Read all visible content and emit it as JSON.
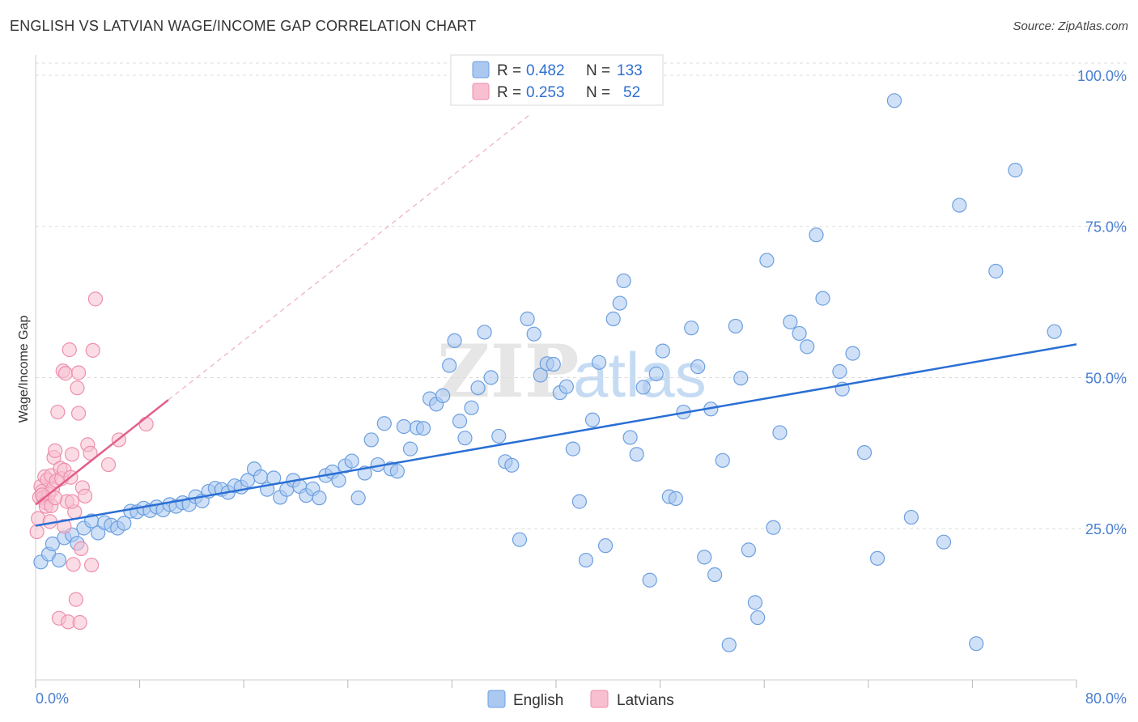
{
  "title": "ENGLISH VS LATVIAN WAGE/INCOME GAP CORRELATION CHART",
  "source": "Source: ZipAtlas.com",
  "watermark": {
    "part1": "ZIP",
    "part2": "atlas"
  },
  "colors": {
    "english_fill": "#aac8f0",
    "english_stroke": "#6c9fe0",
    "english_line": "#2a6fd4",
    "latvian_fill": "#f7bfd0",
    "latvian_stroke": "#ee8fae",
    "latvian_line": "#e0608a",
    "axis_label": "#4a7fd0",
    "grid": "#dddddd"
  },
  "chart_data": {
    "type": "scatter",
    "title": "ENGLISH VS LATVIAN WAGE/INCOME GAP CORRELATION CHART",
    "xlabel": "",
    "ylabel": "Wage/Income Gap",
    "xlim": [
      0,
      80
    ],
    "ylim": [
      0,
      102
    ],
    "x_tick_labels": {
      "left": "0.0%",
      "right": "80.0%"
    },
    "y_ticks": [
      25,
      50,
      75,
      100
    ],
    "y_tick_labels": [
      "25.0%",
      "50.0%",
      "75.0%",
      "100.0%"
    ],
    "legend_box": [
      {
        "r_label": "R =",
        "r_value": "0.482",
        "n_label": "N =",
        "n_value": "133"
      },
      {
        "r_label": "R =",
        "r_value": "0.253",
        "n_label": "N =",
        "n_value": "52"
      }
    ],
    "series": [
      {
        "name": "English",
        "r": 0.482,
        "n": 133,
        "trend": {
          "x": [
            0,
            80
          ],
          "y": [
            25.5,
            55.5
          ]
        },
        "points": [
          [
            0.4,
            19.5
          ],
          [
            1.0,
            20.8
          ],
          [
            1.3,
            22.5
          ],
          [
            1.8,
            19.8
          ],
          [
            2.2,
            23.5
          ],
          [
            2.8,
            24.0
          ],
          [
            3.2,
            22.6
          ],
          [
            3.7,
            25.1
          ],
          [
            4.3,
            26.3
          ],
          [
            4.8,
            24.3
          ],
          [
            5.3,
            26.0
          ],
          [
            5.8,
            25.6
          ],
          [
            6.3,
            25.1
          ],
          [
            6.8,
            25.9
          ],
          [
            7.3,
            27.9
          ],
          [
            7.8,
            27.8
          ],
          [
            8.3,
            28.4
          ],
          [
            8.8,
            28.0
          ],
          [
            9.3,
            28.6
          ],
          [
            9.8,
            28.1
          ],
          [
            10.3,
            29.0
          ],
          [
            10.8,
            28.7
          ],
          [
            11.3,
            29.3
          ],
          [
            11.8,
            29.0
          ],
          [
            12.3,
            30.3
          ],
          [
            12.8,
            29.6
          ],
          [
            13.3,
            31.2
          ],
          [
            13.8,
            31.7
          ],
          [
            14.3,
            31.5
          ],
          [
            14.8,
            31.0
          ],
          [
            15.3,
            32.1
          ],
          [
            15.8,
            31.9
          ],
          [
            16.3,
            33.0
          ],
          [
            16.8,
            34.9
          ],
          [
            17.3,
            33.6
          ],
          [
            17.8,
            31.5
          ],
          [
            18.3,
            33.4
          ],
          [
            18.8,
            30.2
          ],
          [
            19.3,
            31.5
          ],
          [
            19.8,
            33.0
          ],
          [
            20.3,
            32.0
          ],
          [
            20.8,
            30.5
          ],
          [
            21.3,
            31.6
          ],
          [
            21.8,
            30.1
          ],
          [
            22.3,
            33.8
          ],
          [
            22.8,
            34.4
          ],
          [
            23.3,
            33.0
          ],
          [
            23.8,
            35.4
          ],
          [
            24.3,
            36.2
          ],
          [
            24.8,
            30.1
          ],
          [
            25.3,
            34.2
          ],
          [
            25.8,
            39.7
          ],
          [
            26.3,
            35.6
          ],
          [
            26.8,
            42.4
          ],
          [
            27.3,
            34.9
          ],
          [
            27.8,
            34.5
          ],
          [
            28.3,
            41.9
          ],
          [
            28.8,
            38.2
          ],
          [
            29.3,
            41.7
          ],
          [
            29.8,
            41.6
          ],
          [
            30.3,
            46.5
          ],
          [
            30.8,
            45.6
          ],
          [
            31.3,
            47.0
          ],
          [
            31.8,
            52.0
          ],
          [
            32.2,
            56.1
          ],
          [
            32.6,
            42.8
          ],
          [
            33.0,
            40.0
          ],
          [
            33.5,
            45.0
          ],
          [
            34.0,
            48.3
          ],
          [
            34.5,
            57.5
          ],
          [
            35.0,
            50.0
          ],
          [
            35.6,
            40.3
          ],
          [
            36.1,
            36.1
          ],
          [
            36.6,
            35.5
          ],
          [
            37.2,
            23.2
          ],
          [
            37.8,
            59.7
          ],
          [
            38.3,
            57.2
          ],
          [
            38.8,
            50.4
          ],
          [
            39.3,
            52.3
          ],
          [
            39.8,
            52.2
          ],
          [
            40.3,
            47.5
          ],
          [
            40.8,
            48.5
          ],
          [
            41.3,
            38.2
          ],
          [
            41.8,
            29.5
          ],
          [
            42.3,
            19.8
          ],
          [
            42.8,
            43.0
          ],
          [
            43.3,
            52.5
          ],
          [
            43.8,
            22.2
          ],
          [
            44.4,
            59.7
          ],
          [
            44.9,
            62.3
          ],
          [
            45.2,
            66.0
          ],
          [
            45.7,
            40.1
          ],
          [
            46.2,
            37.3
          ],
          [
            46.7,
            48.4
          ],
          [
            47.2,
            16.5
          ],
          [
            47.7,
            50.6
          ],
          [
            48.2,
            54.4
          ],
          [
            48.7,
            30.3
          ],
          [
            49.2,
            30.0
          ],
          [
            49.8,
            44.3
          ],
          [
            50.4,
            58.2
          ],
          [
            50.9,
            51.8
          ],
          [
            51.4,
            20.3
          ],
          [
            51.9,
            44.8
          ],
          [
            52.2,
            17.4
          ],
          [
            52.8,
            36.3
          ],
          [
            53.3,
            5.8
          ],
          [
            53.8,
            58.5
          ],
          [
            54.2,
            49.9
          ],
          [
            54.8,
            21.5
          ],
          [
            55.3,
            12.8
          ],
          [
            55.5,
            10.3
          ],
          [
            56.2,
            69.4
          ],
          [
            56.7,
            25.2
          ],
          [
            57.2,
            40.9
          ],
          [
            58.0,
            59.2
          ],
          [
            58.7,
            57.3
          ],
          [
            59.3,
            55.1
          ],
          [
            60.0,
            73.6
          ],
          [
            60.5,
            63.1
          ],
          [
            61.8,
            51.0
          ],
          [
            62.0,
            48.1
          ],
          [
            62.8,
            54.0
          ],
          [
            63.7,
            37.6
          ],
          [
            64.7,
            20.1
          ],
          [
            67.3,
            26.9
          ],
          [
            69.8,
            22.8
          ],
          [
            71.0,
            78.5
          ],
          [
            72.3,
            6.0
          ],
          [
            73.8,
            67.6
          ],
          [
            75.3,
            84.3
          ],
          [
            78.3,
            57.6
          ],
          [
            66.0,
            95.8
          ]
        ]
      },
      {
        "name": "Latvians",
        "r": 0.253,
        "n": 52,
        "trend": {
          "x": [
            0,
            10.2
          ],
          "y": [
            29.0,
            46.3
          ]
        },
        "trend_extended": {
          "x": [
            10.2,
            38
          ],
          "y": [
            46.3,
            93.5
          ]
        },
        "points": [
          [
            0.1,
            24.5
          ],
          [
            0.2,
            26.7
          ],
          [
            0.3,
            30.2
          ],
          [
            0.4,
            32.0
          ],
          [
            0.5,
            31.2
          ],
          [
            0.6,
            30.1
          ],
          [
            0.7,
            33.6
          ],
          [
            0.8,
            29.3
          ],
          [
            0.9,
            33.1
          ],
          [
            1.0,
            30.7
          ],
          [
            1.1,
            26.2
          ],
          [
            1.2,
            33.8
          ],
          [
            1.3,
            31.5
          ],
          [
            1.4,
            36.8
          ],
          [
            1.5,
            37.9
          ],
          [
            1.6,
            32.9
          ],
          [
            1.7,
            44.3
          ],
          [
            1.8,
            10.2
          ],
          [
            1.9,
            35.0
          ],
          [
            2.0,
            33.3
          ],
          [
            2.1,
            51.1
          ],
          [
            2.2,
            34.7
          ],
          [
            2.3,
            50.7
          ],
          [
            2.4,
            29.5
          ],
          [
            2.5,
            9.6
          ],
          [
            2.6,
            54.6
          ],
          [
            2.7,
            33.5
          ],
          [
            2.8,
            37.3
          ],
          [
            2.9,
            19.1
          ],
          [
            3.0,
            27.8
          ],
          [
            3.1,
            13.3
          ],
          [
            3.2,
            48.3
          ],
          [
            3.3,
            44.1
          ],
          [
            3.3,
            50.8
          ],
          [
            3.4,
            9.5
          ],
          [
            3.5,
            21.7
          ],
          [
            3.6,
            31.8
          ],
          [
            3.8,
            30.4
          ],
          [
            4.0,
            38.9
          ],
          [
            4.2,
            37.5
          ],
          [
            4.3,
            19.0
          ],
          [
            4.4,
            54.5
          ],
          [
            4.6,
            63.0
          ],
          [
            5.6,
            35.6
          ],
          [
            6.4,
            39.7
          ],
          [
            8.5,
            42.3
          ],
          [
            0.5,
            30.6
          ],
          [
            0.8,
            28.7
          ],
          [
            1.2,
            28.8
          ],
          [
            1.5,
            30.1
          ],
          [
            2.2,
            25.4
          ],
          [
            2.8,
            29.5
          ]
        ]
      }
    ]
  },
  "legend": {
    "series1": "English",
    "series2": "Latvians"
  }
}
